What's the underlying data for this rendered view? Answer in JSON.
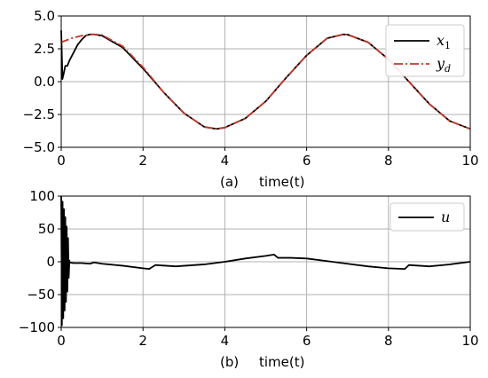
{
  "chart_data": [
    {
      "panel": "(a)",
      "type": "line",
      "xlabel": "time(t)",
      "xlim": [
        0,
        10
      ],
      "ylim": [
        -5,
        5
      ],
      "xticks": [
        "0",
        "2",
        "4",
        "6",
        "8",
        "10"
      ],
      "yticks": [
        "5.0",
        "2.5",
        "0.0",
        "−2.5",
        "−5.0"
      ],
      "grid": true,
      "legend_position": "top-right",
      "series": [
        {
          "name": "x1",
          "color": "#000000",
          "style": "solid",
          "x": [
            0.0,
            0.03,
            0.06,
            0.1,
            0.15,
            0.2,
            0.3,
            0.4,
            0.5,
            0.6,
            0.7,
            0.8,
            1.0,
            1.5,
            2.0,
            2.5,
            3.0,
            3.5,
            3.8,
            4.0,
            4.5,
            5.0,
            5.5,
            6.0,
            6.5,
            6.9,
            7.0,
            7.5,
            8.0,
            8.5,
            9.0,
            9.5,
            10.0
          ],
          "y": [
            3.9,
            0.2,
            0.6,
            1.2,
            1.2,
            1.6,
            2.2,
            2.8,
            3.2,
            3.5,
            3.6,
            3.6,
            3.5,
            2.6,
            1.0,
            -0.8,
            -2.4,
            -3.45,
            -3.6,
            -3.5,
            -2.8,
            -1.5,
            0.3,
            2.0,
            3.3,
            3.6,
            3.58,
            3.0,
            1.7,
            0.0,
            -1.7,
            -3.0,
            -3.6
          ]
        },
        {
          "name": "yd",
          "color": "#c0392b",
          "style": "dashdot",
          "x": [
            0.0,
            0.25,
            0.5,
            0.8,
            1.0,
            1.5,
            2.0,
            2.5,
            3.0,
            3.5,
            3.8,
            4.0,
            4.5,
            5.0,
            5.5,
            6.0,
            6.5,
            6.9,
            7.0,
            7.5,
            8.0,
            8.5,
            9.0,
            9.5,
            10.0
          ],
          "y": [
            3.0,
            3.3,
            3.5,
            3.6,
            3.55,
            2.7,
            1.1,
            -0.8,
            -2.4,
            -3.45,
            -3.6,
            -3.5,
            -2.8,
            -1.5,
            0.3,
            2.0,
            3.3,
            3.6,
            3.58,
            3.0,
            1.7,
            0.0,
            -1.7,
            -3.0,
            -3.6
          ]
        }
      ]
    },
    {
      "panel": "(b)",
      "type": "line",
      "xlabel": "time(t)",
      "xlim": [
        0,
        10
      ],
      "ylim": [
        -100,
        100
      ],
      "xticks": [
        "0",
        "2",
        "4",
        "6",
        "8",
        "10"
      ],
      "yticks": [
        "100",
        "50",
        "0",
        "−50",
        "−100"
      ],
      "grid": true,
      "legend_position": "top-right",
      "series": [
        {
          "name": "u",
          "color": "#000000",
          "style": "solid",
          "oscillation": {
            "t_start": 0.0,
            "t_end": 0.2,
            "amplitude": 100
          },
          "x": [
            0.2,
            0.3,
            0.5,
            0.7,
            0.8,
            1.0,
            1.5,
            2.0,
            2.15,
            2.3,
            2.8,
            3.5,
            4.0,
            4.5,
            5.0,
            5.2,
            5.3,
            5.6,
            6.0,
            6.5,
            7.0,
            7.5,
            8.0,
            8.4,
            8.5,
            9.0,
            9.5,
            10.0
          ],
          "y": [
            -1,
            -2,
            -2,
            -3,
            -1,
            -3,
            -6,
            -10,
            -11,
            -5,
            -7,
            -4,
            0,
            5,
            9,
            11,
            6,
            6,
            5,
            1,
            -3,
            -7,
            -10,
            -11,
            -5,
            -7,
            -4,
            0
          ]
        }
      ]
    }
  ],
  "legend": {
    "a": [
      {
        "base": "x",
        "sub": "1"
      },
      {
        "base": "y",
        "sub": "d"
      }
    ],
    "b": [
      {
        "base": "u",
        "sub": ""
      }
    ]
  },
  "captions": {
    "a_tag": "(a)",
    "b_tag": "(b)"
  }
}
